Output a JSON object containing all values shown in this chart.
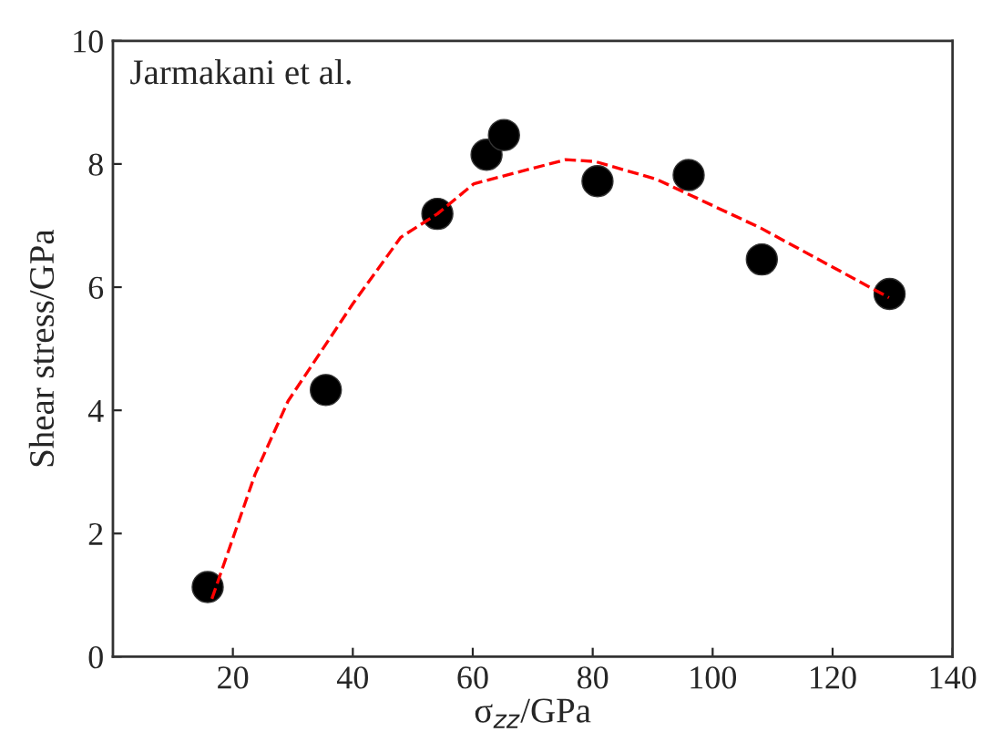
{
  "chart_data": {
    "type": "scatter",
    "xlabel": "σ$_{zz}$/GPa",
    "ylabel": "Shear stress/GPa",
    "annotations": [
      "Jarmakani et al."
    ],
    "series": [
      {
        "color": "#000000",
        "marker": "circle",
        "x": [
          15.8,
          35.5,
          54.1,
          62.3,
          65.2,
          80.8,
          96.0,
          108.2,
          129.5
        ],
        "values": [
          1.13,
          4.33,
          7.19,
          8.15,
          8.47,
          7.72,
          7.82,
          6.45,
          5.89
        ]
      },
      {
        "type": "line",
        "color": "#ff0000",
        "line_style": "dashed",
        "x": [
          16.5,
          23.7,
          29.2,
          40.0,
          48.0,
          54.1,
          60.2,
          75.5,
          80.4,
          90.7,
          108.0,
          129.4
        ],
        "values": [
          0.94,
          2.96,
          4.15,
          5.73,
          6.81,
          7.19,
          7.68,
          8.07,
          8.04,
          7.75,
          6.96,
          5.83
        ]
      }
    ],
    "xlim": [
      0,
      140
    ],
    "xticks": [
      20,
      40,
      60,
      80,
      100,
      120,
      140
    ],
    "ylim": [
      0,
      10
    ],
    "yticks": [
      0,
      2,
      4,
      6,
      8,
      10
    ],
    "grid": false,
    "legend": false
  }
}
